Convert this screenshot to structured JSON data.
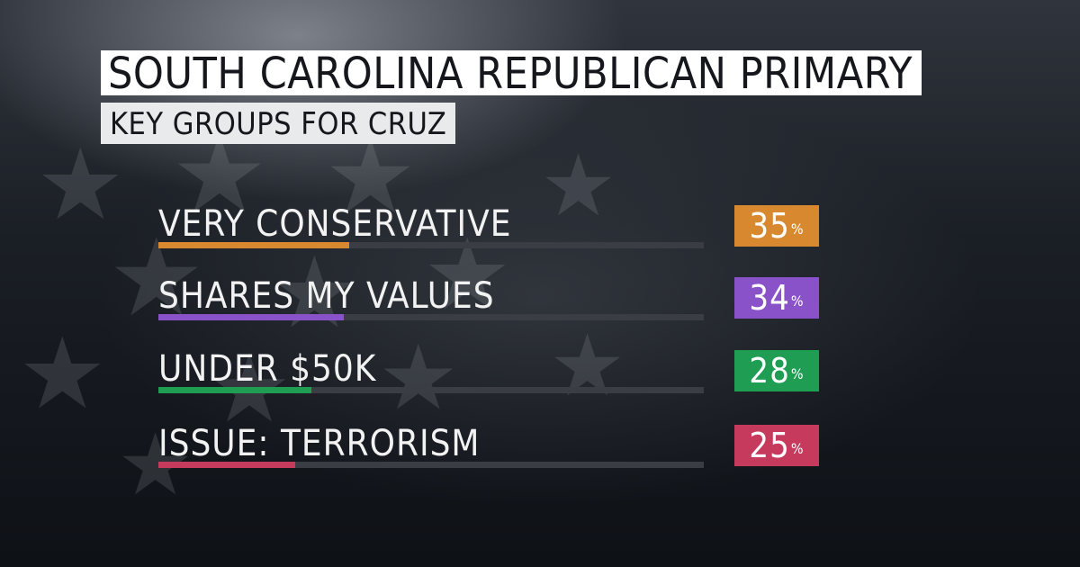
{
  "title": "SOUTH CAROLINA REPUBLICAN PRIMARY",
  "subtitle": "KEY GROUPS FOR CRUZ",
  "colors": {
    "very_conservative": "#d8892f",
    "shares_my_values": "#8a52c9",
    "under_50k": "#1e9d53",
    "issue_terrorism": "#c53a5d"
  },
  "chart_data": {
    "type": "bar",
    "title": "SOUTH CAROLINA REPUBLICAN PRIMARY",
    "subtitle": "KEY GROUPS FOR CRUZ",
    "categories": [
      "VERY CONSERVATIVE",
      "SHARES MY VALUES",
      "UNDER $50K",
      "ISSUE: TERRORISM"
    ],
    "values": [
      35,
      34,
      28,
      25
    ],
    "unit": "%",
    "xlim": [
      0,
      100
    ],
    "grid": false,
    "legend": "none"
  },
  "rows": [
    {
      "label": "VERY CONSERVATIVE",
      "value": "35",
      "unit": "%"
    },
    {
      "label": "SHARES MY VALUES",
      "value": "34",
      "unit": "%"
    },
    {
      "label": "UNDER $50K",
      "value": "28",
      "unit": "%"
    },
    {
      "label": "ISSUE: TERRORISM",
      "value": "25",
      "unit": "%"
    }
  ]
}
